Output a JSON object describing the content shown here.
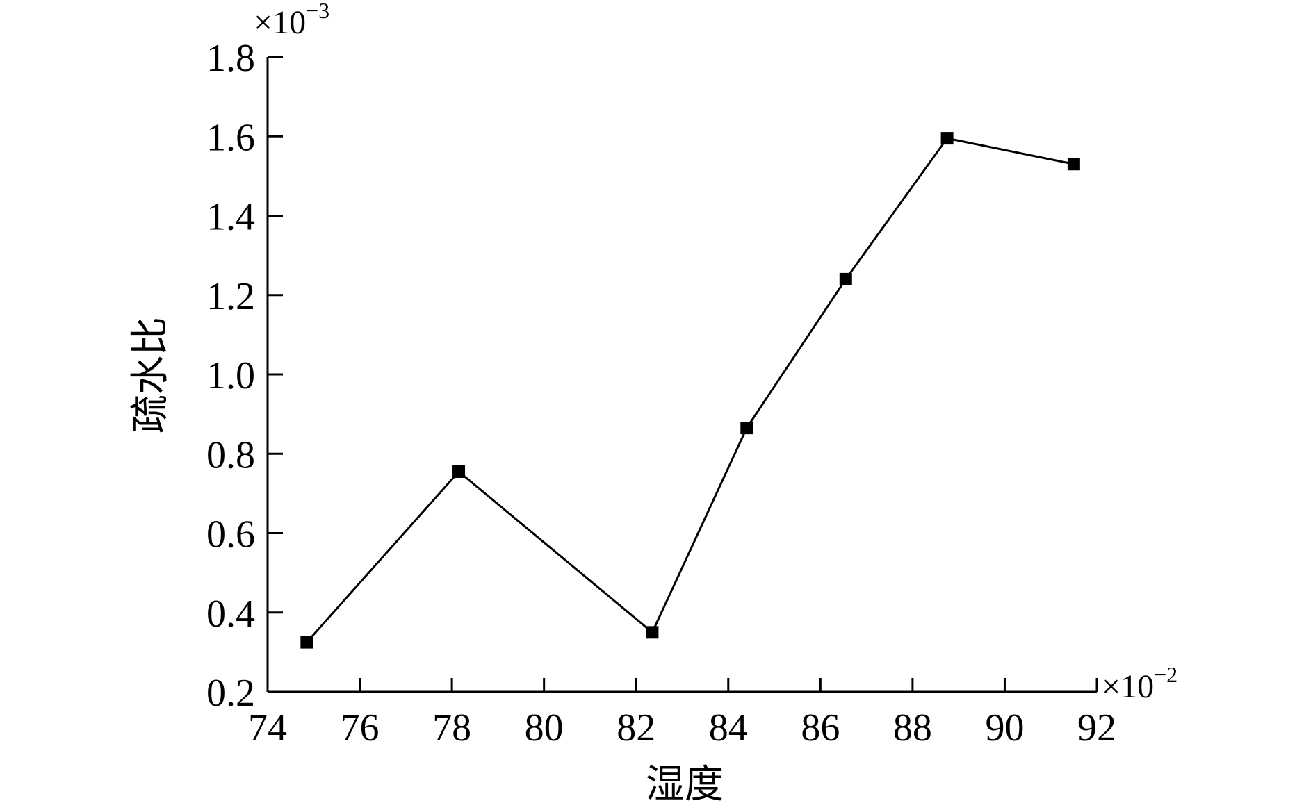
{
  "chart_data": {
    "type": "line",
    "xlabel": "湿度",
    "ylabel": "疏水比",
    "xlim": [
      74,
      92
    ],
    "ylim": [
      0.2,
      1.8
    ],
    "x_ticks": [
      74,
      76,
      78,
      80,
      82,
      84,
      86,
      88,
      90,
      92
    ],
    "y_ticks": [
      0.2,
      0.4,
      0.6,
      0.8,
      1.0,
      1.2,
      1.4,
      1.6,
      1.8
    ],
    "x_tick_labels": [
      "74",
      "76",
      "78",
      "80",
      "82",
      "84",
      "86",
      "88",
      "90",
      "92"
    ],
    "y_tick_labels": [
      "0.2",
      "0.4",
      "0.6",
      "0.8",
      "1.0",
      "1.2",
      "1.4",
      "1.6",
      "1.8"
    ],
    "x_multiplier": {
      "base": "×10",
      "exp": "−2"
    },
    "y_multiplier": {
      "base": "×10",
      "exp": "−3"
    },
    "marker": "square",
    "series": [
      {
        "x": [
          74.85,
          78.15,
          82.35,
          84.4,
          86.55,
          88.75,
          91.5
        ],
        "y": [
          0.325,
          0.755,
          0.35,
          0.865,
          1.24,
          1.595,
          1.53
        ]
      }
    ],
    "colors": {
      "line": "#000000",
      "marker": "#000000"
    },
    "grid": false,
    "legend": "none"
  }
}
